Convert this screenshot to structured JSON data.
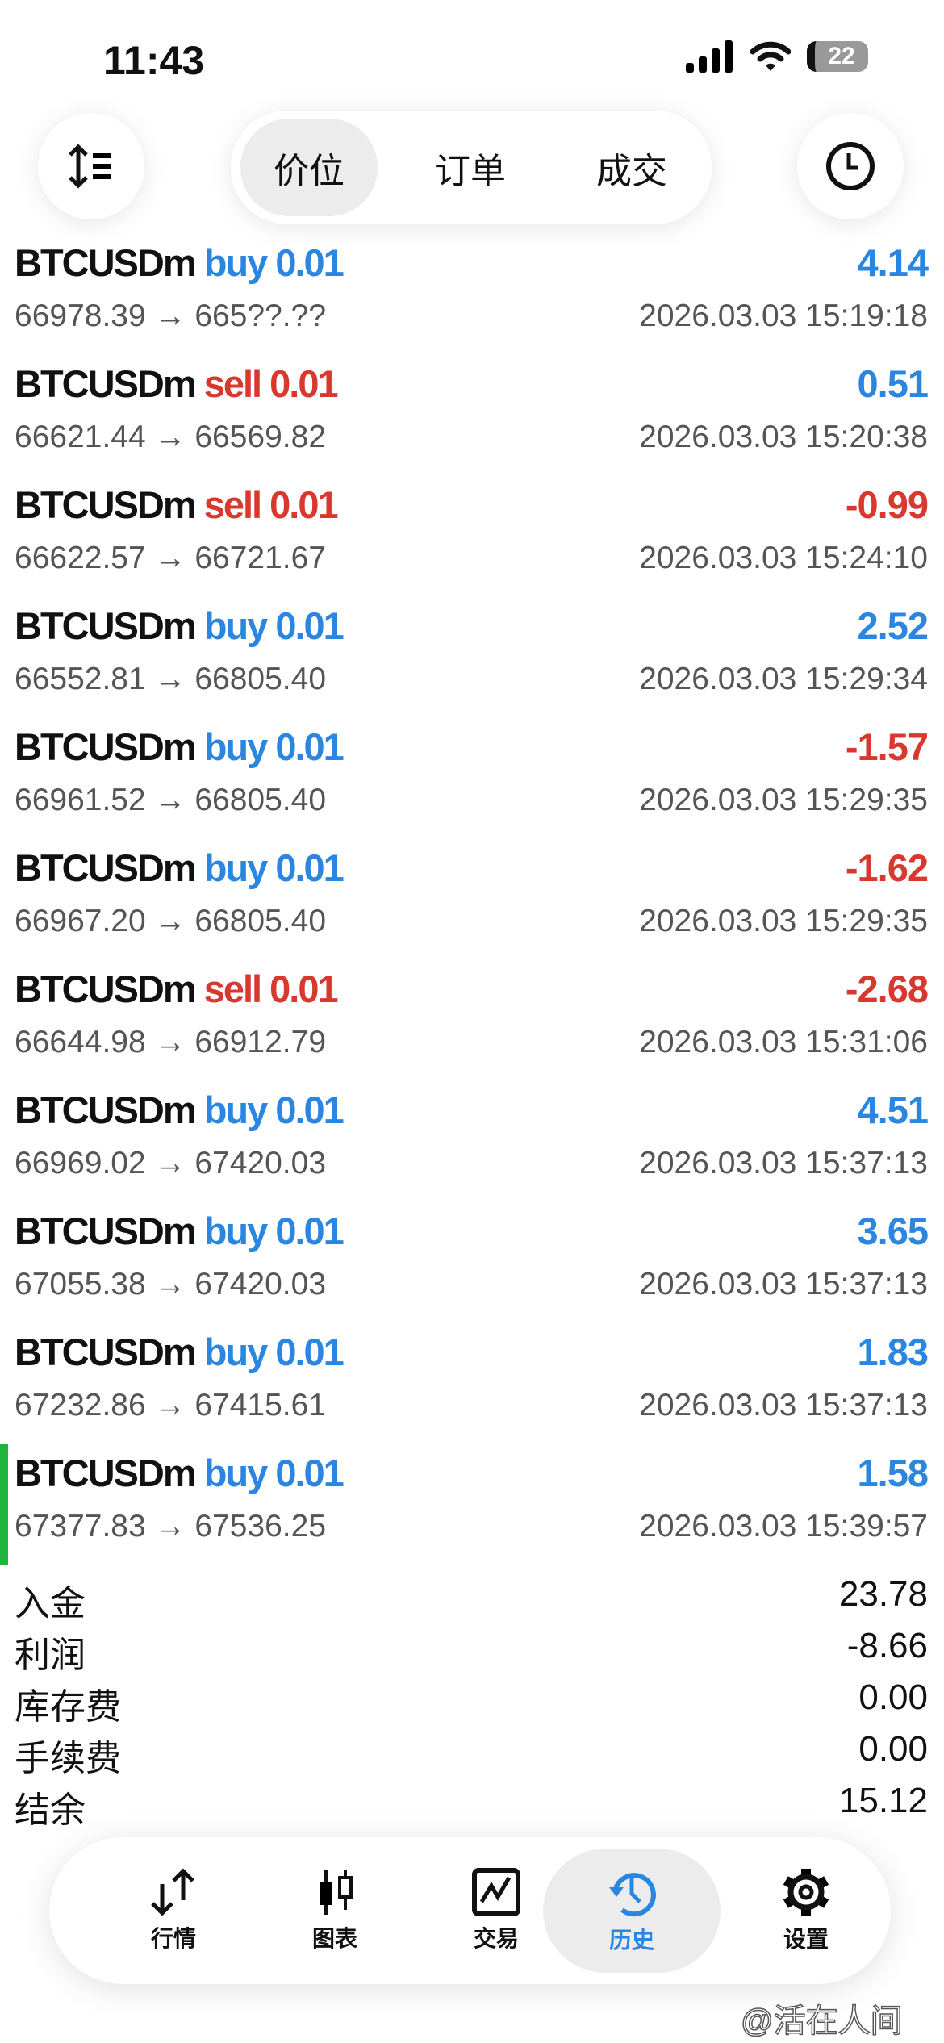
{
  "status_bar": {
    "time": "11:43",
    "battery": "22"
  },
  "top_tabs": [
    {
      "label": "价位",
      "active": true
    },
    {
      "label": "订单",
      "active": false
    },
    {
      "label": "成交",
      "active": false
    }
  ],
  "trades": [
    {
      "symbol": "BTCUSDm",
      "side": "buy",
      "volume": "0.01",
      "profit": "4.14",
      "open": "66978.39",
      "close": "665??.??",
      "time": "2026.03.03 15:19:18"
    },
    {
      "symbol": "BTCUSDm",
      "side": "sell",
      "volume": "0.01",
      "profit": "0.51",
      "open": "66621.44",
      "close": "66569.82",
      "time": "2026.03.03 15:20:38"
    },
    {
      "symbol": "BTCUSDm",
      "side": "sell",
      "volume": "0.01",
      "profit": "-0.99",
      "open": "66622.57",
      "close": "66721.67",
      "time": "2026.03.03 15:24:10"
    },
    {
      "symbol": "BTCUSDm",
      "side": "buy",
      "volume": "0.01",
      "profit": "2.52",
      "open": "66552.81",
      "close": "66805.40",
      "time": "2026.03.03 15:29:34"
    },
    {
      "symbol": "BTCUSDm",
      "side": "buy",
      "volume": "0.01",
      "profit": "-1.57",
      "open": "66961.52",
      "close": "66805.40",
      "time": "2026.03.03 15:29:35"
    },
    {
      "symbol": "BTCUSDm",
      "side": "buy",
      "volume": "0.01",
      "profit": "-1.62",
      "open": "66967.20",
      "close": "66805.40",
      "time": "2026.03.03 15:29:35"
    },
    {
      "symbol": "BTCUSDm",
      "side": "sell",
      "volume": "0.01",
      "profit": "-2.68",
      "open": "66644.98",
      "close": "66912.79",
      "time": "2026.03.03 15:31:06"
    },
    {
      "symbol": "BTCUSDm",
      "side": "buy",
      "volume": "0.01",
      "profit": "4.51",
      "open": "66969.02",
      "close": "67420.03",
      "time": "2026.03.03 15:37:13"
    },
    {
      "symbol": "BTCUSDm",
      "side": "buy",
      "volume": "0.01",
      "profit": "3.65",
      "open": "67055.38",
      "close": "67420.03",
      "time": "2026.03.03 15:37:13"
    },
    {
      "symbol": "BTCUSDm",
      "side": "buy",
      "volume": "0.01",
      "profit": "1.83",
      "open": "67232.86",
      "close": "67415.61",
      "time": "2026.03.03 15:37:13"
    },
    {
      "symbol": "BTCUSDm",
      "side": "buy",
      "volume": "0.01",
      "profit": "1.58",
      "open": "67377.83",
      "close": "67536.25",
      "time": "2026.03.03 15:39:57"
    }
  ],
  "summary": [
    {
      "label": "入金",
      "value": "23.78"
    },
    {
      "label": "利润",
      "value": "-8.66"
    },
    {
      "label": "库存费",
      "value": "0.00"
    },
    {
      "label": "手续费",
      "value": "0.00"
    },
    {
      "label": "结余",
      "value": "15.12"
    }
  ],
  "bottom_nav": [
    {
      "label": "行情",
      "icon": "quotes-arrows-icon"
    },
    {
      "label": "图表",
      "icon": "candlestick-icon"
    },
    {
      "label": "交易",
      "icon": "trade-chart-icon"
    },
    {
      "label": "历史",
      "icon": "history-icon",
      "active": true
    },
    {
      "label": "设置",
      "icon": "gear-icon"
    }
  ],
  "colors": {
    "buy": "#2a86e0",
    "sell": "#d9382e",
    "positive": "#2a86e0",
    "negative": "#d9382e",
    "accent": "#2a86e0",
    "latest_marker": "#1fb43c"
  },
  "watermark": "@活在人间"
}
